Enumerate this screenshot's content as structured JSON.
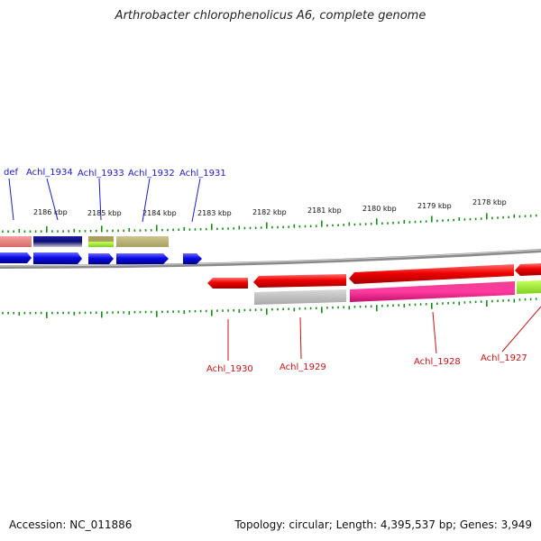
{
  "title": "Arthrobacter chlorophenolicus A6, complete genome",
  "footer": {
    "accession": "Accession: NC_011886",
    "topology": "Topology: circular; Length: 4,395,537 bp; Genes: 3,949"
  },
  "ruler": {
    "labels": [
      "2186 kbp",
      "2185 kbp",
      "2184 kbp",
      "2183 kbp",
      "2182 kbp",
      "2181 kbp",
      "2180 kbp",
      "2179 kbp",
      "2178 kbp"
    ]
  },
  "top_labels": [
    "def",
    "Achl_1934",
    "Achl_1933",
    "Achl_1932",
    "Achl_1931"
  ],
  "bottom_labels": [
    "Achl_1930",
    "Achl_1929",
    "Achl_1928",
    "Achl_1927"
  ],
  "colors": {
    "tick": "#1a8a1a",
    "backbone": "#808080",
    "forward_gene": "#0a0ae6",
    "reverse_gene": "#e60a0a",
    "label_forward": "#1a1ac8",
    "label_reverse": "#c81414"
  }
}
